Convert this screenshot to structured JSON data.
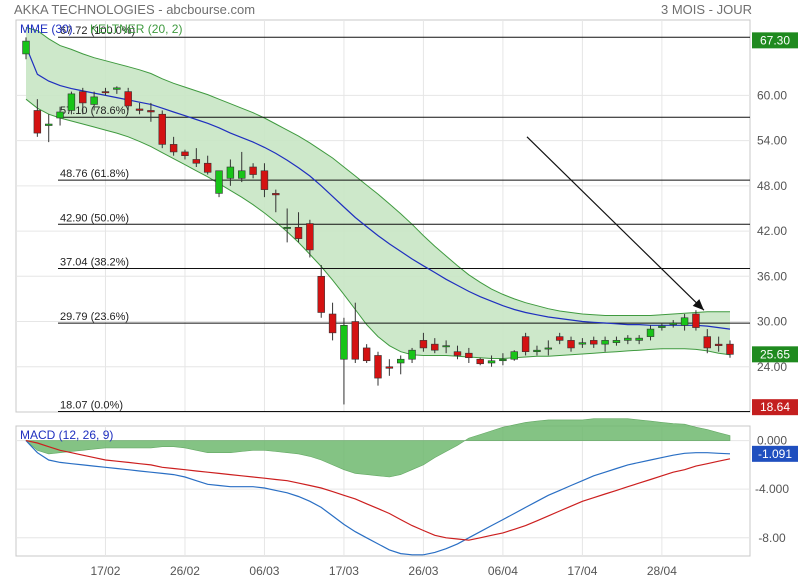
{
  "header": {
    "title": "AKKA TECHNOLOGIES - abcbourse.com",
    "period": "3 MOIS - JOUR"
  },
  "colors": {
    "up": "#18c418",
    "down": "#d41212",
    "keltner_fill": "#c8e6c4",
    "keltner_line": "#3f9a3f",
    "mme": "#1f2fbf",
    "macd_line": "#2a6fc4",
    "signal_line": "#cc1f1f",
    "histogram": "#6fb96f",
    "badge_green": "#1f8a1f",
    "badge_red": "#c41f1f"
  },
  "chart_data": [
    {
      "type": "candlestick",
      "legend": [
        "MME (30)",
        "KELTNER (20, 2)"
      ],
      "ylim": [
        18,
        70
      ],
      "yticks": [
        24,
        30,
        36,
        42,
        48,
        54,
        60
      ],
      "xtick_labels": [
        "17/02",
        "26/02",
        "06/03",
        "17/03",
        "26/03",
        "06/04",
        "17/04",
        "28/04"
      ],
      "xtick_index": [
        7,
        14,
        21,
        28,
        35,
        42,
        49,
        56
      ],
      "fibonacci": [
        {
          "value": 67.72,
          "label": "67.72",
          "pct": "(100.0%)"
        },
        {
          "value": 57.1,
          "label": "57.10",
          "pct": "(78.6%)"
        },
        {
          "value": 48.76,
          "label": "48.76",
          "pct": "(61.8%)"
        },
        {
          "value": 42.9,
          "label": "42.90",
          "pct": "(50.0%)"
        },
        {
          "value": 37.04,
          "label": "37.04",
          "pct": "(38.2%)"
        },
        {
          "value": 29.79,
          "label": "29.79",
          "pct": "(23.6%)"
        },
        {
          "value": 18.07,
          "label": "18.07",
          "pct": "(0.0%)"
        }
      ],
      "badges": [
        {
          "value": 67.3,
          "label": "67.30",
          "kind": "green"
        },
        {
          "value": 25.65,
          "label": "25.65",
          "kind": "green"
        },
        {
          "value": 18.64,
          "label": "18.64",
          "kind": "red"
        }
      ],
      "candles": [
        {
          "o": 65.5,
          "h": 67.7,
          "l": 64.8,
          "c": 67.2
        },
        {
          "o": 58.0,
          "h": 59.5,
          "l": 54.5,
          "c": 55.0
        },
        {
          "o": 56.0,
          "h": 57.5,
          "l": 53.8,
          "c": 56.2
        },
        {
          "o": 57.0,
          "h": 58.5,
          "l": 56.0,
          "c": 57.8
        },
        {
          "o": 58.0,
          "h": 60.5,
          "l": 57.5,
          "c": 60.2
        },
        {
          "o": 60.5,
          "h": 61.0,
          "l": 57.5,
          "c": 59.0
        },
        {
          "o": 58.8,
          "h": 60.5,
          "l": 58.0,
          "c": 59.8
        },
        {
          "o": 60.5,
          "h": 61.0,
          "l": 60.0,
          "c": 60.4
        },
        {
          "o": 60.8,
          "h": 61.2,
          "l": 60.2,
          "c": 61.0
        },
        {
          "o": 60.5,
          "h": 61.0,
          "l": 58.0,
          "c": 58.6
        },
        {
          "o": 58.2,
          "h": 59.0,
          "l": 57.5,
          "c": 58.0
        },
        {
          "o": 58.0,
          "h": 59.0,
          "l": 56.5,
          "c": 57.8
        },
        {
          "o": 57.5,
          "h": 58.0,
          "l": 53.0,
          "c": 53.5
        },
        {
          "o": 53.5,
          "h": 54.5,
          "l": 52.0,
          "c": 52.5
        },
        {
          "o": 52.5,
          "h": 52.8,
          "l": 51.5,
          "c": 52.0
        },
        {
          "o": 51.5,
          "h": 53.0,
          "l": 50.5,
          "c": 51.0
        },
        {
          "o": 51.0,
          "h": 52.0,
          "l": 49.5,
          "c": 49.8
        },
        {
          "o": 47.0,
          "h": 50.0,
          "l": 46.5,
          "c": 50.0
        },
        {
          "o": 49.0,
          "h": 51.5,
          "l": 48.0,
          "c": 50.5
        },
        {
          "o": 49.0,
          "h": 52.5,
          "l": 48.5,
          "c": 50.0
        },
        {
          "o": 50.5,
          "h": 51.0,
          "l": 49.0,
          "c": 49.5
        },
        {
          "o": 50.0,
          "h": 51.0,
          "l": 46.5,
          "c": 47.5
        },
        {
          "o": 47.0,
          "h": 47.5,
          "l": 44.5,
          "c": 46.8
        },
        {
          "o": 42.5,
          "h": 45.0,
          "l": 40.5,
          "c": 42.5
        },
        {
          "o": 42.5,
          "h": 44.5,
          "l": 40.5,
          "c": 41.0
        },
        {
          "o": 43.0,
          "h": 43.5,
          "l": 38.5,
          "c": 39.5
        },
        {
          "o": 36.0,
          "h": 37.5,
          "l": 30.5,
          "c": 31.2
        },
        {
          "o": 31.0,
          "h": 32.5,
          "l": 27.5,
          "c": 28.5
        },
        {
          "o": 25.0,
          "h": 30.5,
          "l": 19.0,
          "c": 29.5
        },
        {
          "o": 30.0,
          "h": 32.5,
          "l": 24.5,
          "c": 25.0
        },
        {
          "o": 26.5,
          "h": 27.0,
          "l": 24.5,
          "c": 24.8
        },
        {
          "o": 25.5,
          "h": 26.0,
          "l": 21.5,
          "c": 22.5
        },
        {
          "o": 24.0,
          "h": 25.0,
          "l": 22.8,
          "c": 23.8
        },
        {
          "o": 24.5,
          "h": 25.5,
          "l": 23.0,
          "c": 25.0
        },
        {
          "o": 25.0,
          "h": 26.5,
          "l": 24.5,
          "c": 26.2
        },
        {
          "o": 27.5,
          "h": 28.5,
          "l": 26.0,
          "c": 26.5
        },
        {
          "o": 27.0,
          "h": 27.8,
          "l": 25.8,
          "c": 26.2
        },
        {
          "o": 26.8,
          "h": 27.5,
          "l": 25.8,
          "c": 26.8
        },
        {
          "o": 26.0,
          "h": 26.8,
          "l": 25.0,
          "c": 25.5
        },
        {
          "o": 25.8,
          "h": 26.5,
          "l": 24.5,
          "c": 25.2
        },
        {
          "o": 25.0,
          "h": 25.2,
          "l": 24.2,
          "c": 24.4
        },
        {
          "o": 24.5,
          "h": 25.5,
          "l": 24.0,
          "c": 24.8
        },
        {
          "o": 24.8,
          "h": 25.8,
          "l": 24.2,
          "c": 25.0
        },
        {
          "o": 25.0,
          "h": 26.2,
          "l": 24.8,
          "c": 26.0
        },
        {
          "o": 28.0,
          "h": 28.5,
          "l": 25.5,
          "c": 26.0
        },
        {
          "o": 26.0,
          "h": 26.8,
          "l": 25.5,
          "c": 26.2
        },
        {
          "o": 26.5,
          "h": 27.5,
          "l": 25.5,
          "c": 26.5
        },
        {
          "o": 28.0,
          "h": 28.5,
          "l": 27.0,
          "c": 27.5
        },
        {
          "o": 27.5,
          "h": 28.0,
          "l": 26.0,
          "c": 26.5
        },
        {
          "o": 27.0,
          "h": 27.8,
          "l": 26.5,
          "c": 27.2
        },
        {
          "o": 27.5,
          "h": 28.0,
          "l": 26.5,
          "c": 27.0
        },
        {
          "o": 27.0,
          "h": 28.0,
          "l": 26.0,
          "c": 27.5
        },
        {
          "o": 27.2,
          "h": 28.0,
          "l": 26.8,
          "c": 27.5
        },
        {
          "o": 27.5,
          "h": 28.2,
          "l": 27.0,
          "c": 27.8
        },
        {
          "o": 27.5,
          "h": 28.2,
          "l": 27.0,
          "c": 27.8
        },
        {
          "o": 28.0,
          "h": 29.5,
          "l": 27.5,
          "c": 29.0
        },
        {
          "o": 29.2,
          "h": 29.8,
          "l": 28.8,
          "c": 29.4
        },
        {
          "o": 29.6,
          "h": 30.2,
          "l": 29.2,
          "c": 29.8
        },
        {
          "o": 29.5,
          "h": 31.0,
          "l": 28.8,
          "c": 30.5
        },
        {
          "o": 31.0,
          "h": 31.5,
          "l": 28.8,
          "c": 29.2
        },
        {
          "o": 28.0,
          "h": 29.0,
          "l": 25.8,
          "c": 26.5
        },
        {
          "o": 27.0,
          "h": 28.0,
          "l": 26.0,
          "c": 26.8
        },
        {
          "o": 27.0,
          "h": 27.5,
          "l": 25.2,
          "c": 25.65
        }
      ],
      "mme": [
        66.5,
        62.8,
        61.9,
        61.3,
        60.9,
        60.6,
        60.3,
        60.0,
        59.7,
        59.4,
        59.1,
        58.8,
        58.3,
        57.8,
        57.3,
        56.8,
        56.3,
        55.7,
        55.0,
        54.4,
        53.8,
        53.1,
        52.3,
        51.4,
        50.4,
        49.3,
        48.0,
        46.6,
        45.2,
        43.8,
        42.6,
        41.4,
        40.3,
        39.3,
        38.3,
        37.4,
        36.5,
        35.6,
        34.8,
        34.0,
        33.3,
        32.7,
        32.1,
        31.6,
        31.2,
        30.9,
        30.6,
        30.4,
        30.2,
        30.0,
        29.9,
        29.8,
        29.7,
        29.6,
        29.6,
        29.5,
        29.5,
        29.5,
        29.5,
        29.5,
        29.4,
        29.2,
        29.0
      ],
      "keltner_upper": [
        69.0,
        68.6,
        67.5,
        66.6,
        66.1,
        65.5,
        65.0,
        64.6,
        64.2,
        63.8,
        63.4,
        62.9,
        62.2,
        61.6,
        61.1,
        60.6,
        60.1,
        59.5,
        58.9,
        58.3,
        57.7,
        57.0,
        56.2,
        55.4,
        54.6,
        53.7,
        52.7,
        51.7,
        50.5,
        49.3,
        48.1,
        46.9,
        45.6,
        44.3,
        42.9,
        41.4,
        40.0,
        38.7,
        37.4,
        36.2,
        35.2,
        34.3,
        33.6,
        33.0,
        32.5,
        32.1,
        31.7,
        31.4,
        31.2,
        31.0,
        30.9,
        30.8,
        30.8,
        30.8,
        30.8,
        30.8,
        30.9,
        31.0,
        31.1,
        31.2,
        31.3,
        31.3,
        31.3
      ],
      "keltner_lower": [
        59.5,
        58.3,
        57.5,
        57.0,
        56.6,
        56.2,
        55.8,
        55.4,
        55.0,
        54.5,
        53.9,
        53.2,
        52.4,
        51.6,
        50.8,
        50.0,
        49.2,
        48.3,
        47.4,
        46.5,
        45.5,
        44.4,
        43.2,
        41.9,
        40.5,
        38.9,
        37.3,
        35.5,
        33.6,
        31.6,
        29.6,
        28.0,
        26.8,
        26.0,
        25.6,
        25.5,
        25.5,
        25.5,
        25.4,
        25.3,
        25.2,
        25.1,
        25.1,
        25.2,
        25.3,
        25.4,
        25.4,
        25.5,
        25.6,
        25.7,
        25.8,
        25.9,
        26.0,
        26.1,
        26.2,
        26.3,
        26.4,
        26.4,
        26.4,
        26.3,
        26.1,
        25.8,
        25.6
      ],
      "arrow_label": ""
    },
    {
      "type": "line",
      "legend": "MACD (12, 26, 9)",
      "ylim": [
        -9.5,
        1.2
      ],
      "yticks": [
        0,
        -4,
        -8
      ],
      "ytick_labels": [
        "0.000",
        "-4.000",
        "-8.00"
      ],
      "badge": {
        "value": -1.091,
        "label": "-1.091"
      },
      "macd": [
        0.0,
        -1.0,
        -1.6,
        -1.8,
        -1.9,
        -2.0,
        -2.1,
        -2.2,
        -2.3,
        -2.4,
        -2.5,
        -2.6,
        -2.7,
        -2.8,
        -3.0,
        -3.3,
        -3.6,
        -3.7,
        -3.8,
        -3.8,
        -3.8,
        -3.9,
        -4.1,
        -4.3,
        -4.6,
        -5.0,
        -5.5,
        -6.2,
        -6.9,
        -7.5,
        -8.0,
        -8.5,
        -9.0,
        -9.3,
        -9.4,
        -9.4,
        -9.2,
        -8.9,
        -8.5,
        -8.0,
        -7.5,
        -7.0,
        -6.5,
        -6.0,
        -5.5,
        -5.0,
        -4.5,
        -4.1,
        -3.7,
        -3.3,
        -2.9,
        -2.6,
        -2.3,
        -2.0,
        -1.8,
        -1.6,
        -1.4,
        -1.2,
        -1.05,
        -1.0,
        -1.0,
        -1.05,
        -1.091
      ],
      "signal": [
        0.0,
        -0.2,
        -0.5,
        -0.8,
        -1.0,
        -1.2,
        -1.4,
        -1.6,
        -1.7,
        -1.8,
        -1.9,
        -2.0,
        -2.2,
        -2.3,
        -2.4,
        -2.5,
        -2.6,
        -2.7,
        -2.8,
        -2.9,
        -3.0,
        -3.1,
        -3.2,
        -3.3,
        -3.5,
        -3.7,
        -3.9,
        -4.2,
        -4.5,
        -4.8,
        -5.2,
        -5.6,
        -6.0,
        -6.5,
        -7.0,
        -7.4,
        -7.8,
        -8.0,
        -8.1,
        -8.2,
        -8.0,
        -7.8,
        -7.6,
        -7.3,
        -7.0,
        -6.6,
        -6.2,
        -5.8,
        -5.4,
        -5.0,
        -4.7,
        -4.4,
        -4.1,
        -3.8,
        -3.5,
        -3.2,
        -2.9,
        -2.6,
        -2.4,
        -2.1,
        -1.9,
        -1.7,
        -1.5
      ],
      "xtick_labels": [
        "17/02",
        "26/02",
        "06/03",
        "17/03",
        "26/03",
        "06/04",
        "17/04",
        "28/04"
      ]
    }
  ]
}
